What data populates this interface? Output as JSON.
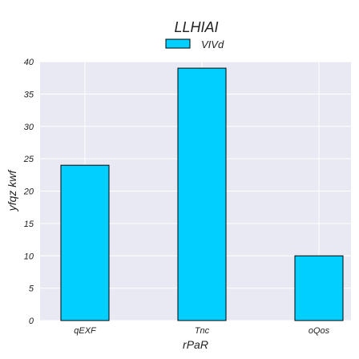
{
  "chart_data": {
    "type": "bar",
    "title": "LLHIAI",
    "xlabel": "rPaR",
    "ylabel": "yfqz kwf",
    "categories": [
      "qEXF",
      "Tnc",
      "oQos"
    ],
    "series": [
      {
        "name": "VIVd",
        "values": [
          24,
          39,
          10
        ],
        "color": "#00cfff"
      }
    ],
    "ylim": [
      0,
      40
    ],
    "yticks": [
      0,
      5,
      10,
      15,
      20,
      25,
      30,
      35,
      40
    ],
    "grid": true,
    "legend_position": "top-center",
    "colors": {
      "background": "#e8e9f2",
      "grid": "#ffffff",
      "bar_edge": "#000000"
    }
  }
}
